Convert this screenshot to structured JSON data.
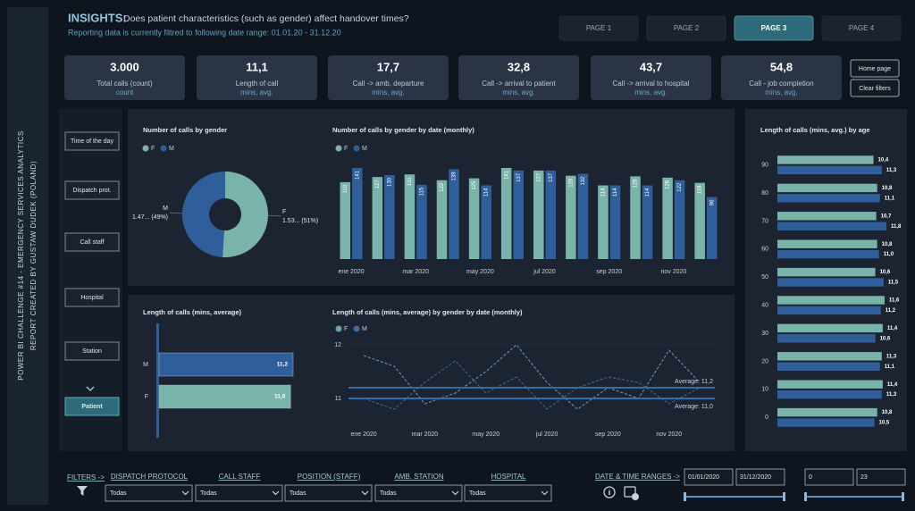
{
  "sidebar": {
    "lines": [
      "POWER BI CHALLENGE #14 - EMERGENCY SERVICES ANALYTICS",
      "REPORT CREATED BY GUSTAW DUDEK (POLAND)"
    ]
  },
  "header": {
    "label": "INSIGHTS:",
    "question": "Does patient characteristics (such as gender) affect handover times?",
    "subtitle": "Reporting data is currently filtred to following date range: 01.01.20 - 31.12.20"
  },
  "tabs": [
    {
      "label": "PAGE 1",
      "active": false
    },
    {
      "label": "PAGE 2",
      "active": false
    },
    {
      "label": "PAGE 3",
      "active": true
    },
    {
      "label": "PAGE 4",
      "active": false
    }
  ],
  "kpis": [
    {
      "value": "3.000",
      "label": "Total calls (count)",
      "unit": "count"
    },
    {
      "value": "11,1",
      "label": "Length of call",
      "unit": "mins, avg."
    },
    {
      "value": "17,7",
      "label": "Call -> amb. departure",
      "unit": "mins, avg."
    },
    {
      "value": "32,8",
      "label": "Call -> arrival to patient",
      "unit": "mins, avg."
    },
    {
      "value": "43,7",
      "label": "Call -> arrival to hospital",
      "unit": "mins, avg."
    },
    {
      "value": "54,8",
      "label": "Call - job completion",
      "unit": "mins, avg."
    }
  ],
  "buttons": [
    "Home page",
    "Clear filters"
  ],
  "nav": [
    {
      "label": "Time of the day",
      "active": false
    },
    {
      "label": "Dispatch prot.",
      "active": false
    },
    {
      "label": "Call staff",
      "active": false
    },
    {
      "label": "Hospital",
      "active": false
    },
    {
      "label": "Station",
      "active": false
    },
    {
      "label": "Patient",
      "active": true
    }
  ],
  "chart_data": [
    {
      "type": "pie",
      "title": "Number of calls by gender",
      "categories": [
        "F",
        "M"
      ],
      "values": [
        1530,
        1470
      ],
      "value_labels": [
        "1.53... (51%)",
        "1.47... (49%)"
      ],
      "colors": [
        "#79b4aa",
        "#2f5f9a"
      ],
      "legend": "top-left"
    },
    {
      "type": "bar",
      "title": "Number of calls by gender by date (monthly)",
      "categories": [
        "ene 2020",
        null,
        "mar 2020",
        null,
        "may 2020",
        null,
        "jul 2020",
        null,
        "sep 2020",
        null,
        "nov 2020",
        null
      ],
      "series": [
        {
          "name": "F",
          "color": "#79b4aa",
          "values": [
            119,
            127,
            131,
            122,
            125,
            141,
            137,
            129,
            114,
            128,
            126,
            118
          ]
        },
        {
          "name": "M",
          "color": "#2f5f9a",
          "values": [
            141,
            130,
            115,
            139,
            114,
            137,
            137,
            132,
            114,
            114,
            122,
            96
          ]
        }
      ],
      "legend": "top-left"
    },
    {
      "type": "bar",
      "orientation": "horizontal",
      "title": "Length of calls (mins, average)",
      "categories": [
        "M",
        "F"
      ],
      "values": [
        11.2,
        11.0
      ],
      "value_labels": [
        "11,2",
        "11,0"
      ],
      "colors": [
        "#2f5f9a",
        "#79b4aa"
      ]
    },
    {
      "type": "line",
      "title": "Length of calls (mins, average) by gender by date (monthly)",
      "categories": [
        "ene 2020",
        null,
        "mar 2020",
        null,
        "may 2020",
        null,
        "jul 2020",
        null,
        "sep 2020",
        null,
        "nov 2020",
        null
      ],
      "series": [
        {
          "name": "F",
          "color": "#6f9fae",
          "values": [
            11.8,
            11.6,
            10.9,
            11.1,
            11.5,
            12.0,
            11.3,
            10.8,
            11.2,
            11.0,
            11.9,
            11.3
          ]
        },
        {
          "name": "M",
          "color": "#3d6d9e",
          "values": [
            11.0,
            10.8,
            11.3,
            11.7,
            11.1,
            11.4,
            10.8,
            11.2,
            11.4,
            11.3,
            10.9,
            11.2
          ]
        }
      ],
      "ylim": [
        10.45,
        12.1
      ],
      "yticks": [
        11,
        12
      ],
      "legend": "top-left",
      "reference_lines": [
        {
          "value": 11.2,
          "label": "Average: 11,2",
          "color": "#2f6ea8"
        },
        {
          "value": 11.0,
          "label": "Average: 11,0",
          "color": "#2f6ea8"
        }
      ]
    },
    {
      "type": "bar",
      "orientation": "horizontal",
      "title": "Length of calls (mins, avg.) by age",
      "categories": [
        90,
        80,
        70,
        60,
        50,
        40,
        30,
        20,
        10,
        0
      ],
      "series": [
        {
          "name": "F",
          "color": "#79b4aa",
          "values": [
            10.4,
            10.8,
            10.7,
            10.8,
            10.6,
            11.6,
            11.4,
            11.3,
            11.4,
            10.8
          ],
          "value_labels": [
            "10,4",
            "10,8",
            "10,7",
            "10,8",
            "10,6",
            "11,6",
            "11,4",
            "11,3",
            "11,4",
            "10,8"
          ]
        },
        {
          "name": "M",
          "color": "#2f5f9a",
          "values": [
            11.3,
            11.1,
            11.8,
            11.0,
            11.5,
            11.2,
            10.6,
            11.1,
            11.3,
            10.5
          ],
          "value_labels": [
            "11,3",
            "11,1",
            "11,8",
            "11,0",
            "11,5",
            "11,2",
            "10,6",
            "11,1",
            "11,3",
            "10,5"
          ]
        }
      ]
    }
  ],
  "filters": {
    "label": "FILTERS ->",
    "fields": [
      {
        "name": "DISPATCH PROTOCOL",
        "value": "Todas"
      },
      {
        "name": "CALL STAFF",
        "value": "Todas"
      },
      {
        "name": "POSITION (STAFF)",
        "value": "Todas"
      },
      {
        "name": "AMB. STATION",
        "value": "Todas"
      },
      {
        "name": "HOSPITAL",
        "value": "Todas"
      }
    ],
    "date_label": "DATE & TIME RANGES ->",
    "date_range": [
      "01/01/2020",
      "31/12/2020"
    ],
    "hour_range": [
      0,
      23
    ]
  }
}
